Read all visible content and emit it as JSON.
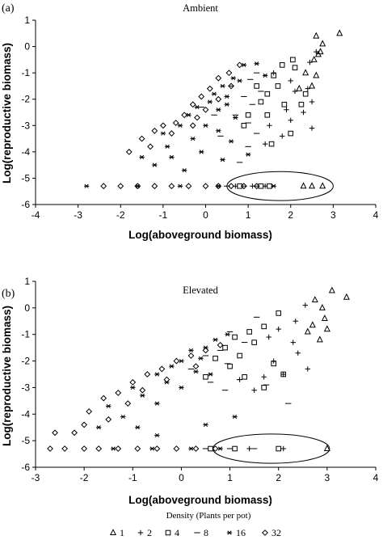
{
  "legend": {
    "title": "Density (Plants per pot)",
    "items": [
      {
        "label": "1",
        "marker": "triangle-icon"
      },
      {
        "label": "2",
        "marker": "plus-icon"
      },
      {
        "label": "4",
        "marker": "square-icon"
      },
      {
        "label": "8",
        "marker": "dash-icon"
      },
      {
        "label": "16",
        "marker": "asterisk-icon"
      },
      {
        "label": "32",
        "marker": "diamond-icon"
      }
    ]
  },
  "chart_data": [
    {
      "panel_label": "(a)",
      "type": "scatter",
      "title": "Ambient",
      "xlabel": "Log(aboveground biomass)",
      "ylabel": "Log(reproductive biomass)",
      "xlim": [
        -4,
        4
      ],
      "ylim": [
        -6,
        1
      ],
      "xticks": [
        "-4",
        "-3",
        "-2",
        "-1",
        "0",
        "1",
        "2",
        "3",
        "4"
      ],
      "yticks": [
        "1",
        "0",
        "-1",
        "-2",
        "-3",
        "-4",
        "-5",
        "-6"
      ],
      "ellipse": {
        "cx": 1.75,
        "cy": -5.3,
        "rx": 1.25,
        "ry": 0.55
      },
      "series": [
        {
          "name": "1",
          "marker": "triangle",
          "points": [
            [
              2.6,
              0.4
            ],
            [
              3.15,
              0.5
            ],
            [
              2.75,
              0.1
            ],
            [
              2.65,
              -0.3
            ],
            [
              2.55,
              -0.5
            ],
            [
              2.7,
              -0.2
            ],
            [
              2.35,
              -1.0
            ],
            [
              2.6,
              -1.1
            ],
            [
              2.5,
              -1.5
            ],
            [
              2.2,
              -1.6
            ],
            [
              2.3,
              -5.3
            ],
            [
              2.5,
              -5.3
            ],
            [
              2.75,
              -5.3
            ]
          ]
        },
        {
          "name": "2",
          "marker": "plus",
          "points": [
            [
              2.6,
              -0.2
            ],
            [
              2.45,
              -0.6
            ],
            [
              1.6,
              -1.0
            ],
            [
              2.0,
              -1.3
            ],
            [
              2.1,
              -1.7
            ],
            [
              2.4,
              -1.6
            ],
            [
              1.9,
              -2.4
            ],
            [
              2.5,
              -2.1
            ],
            [
              2.3,
              -2.5
            ],
            [
              2.0,
              -2.8
            ],
            [
              1.5,
              -3.0
            ],
            [
              1.8,
              -3.4
            ],
            [
              2.5,
              -3.1
            ],
            [
              1.4,
              -3.7
            ],
            [
              0.7,
              -5.3
            ],
            [
              1.1,
              -5.3
            ],
            [
              1.4,
              -5.3
            ]
          ]
        },
        {
          "name": "4",
          "marker": "square",
          "points": [
            [
              2.05,
              -0.5
            ],
            [
              2.1,
              -0.8
            ],
            [
              1.8,
              -0.7
            ],
            [
              1.6,
              -1.1
            ],
            [
              1.7,
              -1.5
            ],
            [
              1.2,
              -1.5
            ],
            [
              1.45,
              -1.8
            ],
            [
              2.35,
              -1.8
            ],
            [
              2.25,
              -2.2
            ],
            [
              1.85,
              -2.2
            ],
            [
              1.3,
              -2.1
            ],
            [
              1.0,
              -2.6
            ],
            [
              1.45,
              -2.6
            ],
            [
              0.9,
              -3.0
            ],
            [
              2.0,
              -3.3
            ],
            [
              1.55,
              -3.7
            ],
            [
              0.8,
              -5.3
            ],
            [
              1.3,
              -5.3
            ],
            [
              1.5,
              -5.3
            ]
          ]
        },
        {
          "name": "8",
          "marker": "dash",
          "points": [
            [
              1.2,
              -1.0
            ],
            [
              1.05,
              -1.25
            ],
            [
              1.3,
              -1.7
            ],
            [
              0.9,
              -1.9
            ],
            [
              0.6,
              -1.5
            ],
            [
              1.1,
              -2.2
            ],
            [
              0.7,
              -2.6
            ],
            [
              0.2,
              -2.6
            ],
            [
              -0.1,
              -2.3
            ],
            [
              1.0,
              -2.9
            ],
            [
              1.2,
              -3.3
            ],
            [
              0.35,
              -3.4
            ],
            [
              1.0,
              -3.8
            ],
            [
              0.8,
              -4.4
            ],
            [
              0.5,
              -5.3
            ],
            [
              0.9,
              -5.3
            ],
            [
              1.2,
              -5.3
            ]
          ]
        },
        {
          "name": "16",
          "marker": "asterisk",
          "points": [
            [
              1.2,
              -0.65
            ],
            [
              0.9,
              -0.7
            ],
            [
              1.4,
              -1.1
            ],
            [
              0.8,
              -1.3
            ],
            [
              0.65,
              -1.2
            ],
            [
              0.4,
              -1.5
            ],
            [
              0.2,
              -1.8
            ],
            [
              0.5,
              -1.9
            ],
            [
              0.1,
              -2.1
            ],
            [
              -0.2,
              -2.3
            ],
            [
              0.3,
              -2.4
            ],
            [
              0.5,
              -2.2
            ],
            [
              -0.4,
              -2.6
            ],
            [
              0.7,
              -2.7
            ],
            [
              0.0,
              -3.0
            ],
            [
              -0.6,
              -3.0
            ],
            [
              0.3,
              -3.2
            ],
            [
              -1.0,
              -3.3
            ],
            [
              -0.3,
              -3.5
            ],
            [
              0.6,
              -3.6
            ],
            [
              -0.9,
              -3.8
            ],
            [
              -0.1,
              -4.0
            ],
            [
              -1.5,
              -4.2
            ],
            [
              -0.8,
              -4.2
            ],
            [
              0.4,
              -4.3
            ],
            [
              1.0,
              -4.1
            ],
            [
              -1.2,
              -4.5
            ],
            [
              -0.5,
              -4.7
            ],
            [
              -2.8,
              -5.3
            ],
            [
              -1.6,
              -5.3
            ],
            [
              -0.6,
              -5.3
            ],
            [
              0.3,
              -5.3
            ],
            [
              1.6,
              -5.3
            ]
          ]
        },
        {
          "name": "32",
          "marker": "diamond",
          "points": [
            [
              0.8,
              -0.7
            ],
            [
              0.55,
              -1.0
            ],
            [
              0.3,
              -1.2
            ],
            [
              0.6,
              -1.5
            ],
            [
              0.1,
              -1.6
            ],
            [
              -0.1,
              -1.9
            ],
            [
              0.3,
              -2.0
            ],
            [
              -0.3,
              -2.2
            ],
            [
              0.0,
              -2.4
            ],
            [
              -0.2,
              -2.7
            ],
            [
              -0.5,
              -2.6
            ],
            [
              -0.7,
              -2.9
            ],
            [
              -0.3,
              -3.0
            ],
            [
              -1.0,
              -3.0
            ],
            [
              -0.8,
              -3.3
            ],
            [
              -1.2,
              -3.2
            ],
            [
              -1.5,
              -3.5
            ],
            [
              -1.3,
              -3.8
            ],
            [
              -1.8,
              -4.0
            ],
            [
              -2.4,
              -5.3
            ],
            [
              -2.0,
              -5.3
            ],
            [
              -1.6,
              -5.3
            ],
            [
              -1.2,
              -5.3
            ],
            [
              -0.8,
              -5.3
            ],
            [
              -0.4,
              -5.3
            ],
            [
              0.0,
              -5.3
            ],
            [
              0.3,
              -5.3
            ],
            [
              0.6,
              -5.3
            ],
            [
              0.9,
              -5.3
            ],
            [
              1.2,
              -5.3
            ]
          ]
        }
      ]
    },
    {
      "panel_label": "(b)",
      "type": "scatter",
      "title": "Elevated",
      "xlabel": "Log(aboveground biomass)",
      "ylabel": "Log(reproductive biomass)",
      "xlim": [
        -3,
        4
      ],
      "ylim": [
        -6,
        1
      ],
      "xticks": [
        "-3",
        "-2",
        "-1",
        "0",
        "1",
        "2",
        "3",
        "4"
      ],
      "yticks": [
        "1",
        "0",
        "-1",
        "-2",
        "-3",
        "-4",
        "-5",
        "-6"
      ],
      "ellipse": {
        "cx": 1.85,
        "cy": -5.3,
        "rx": 1.2,
        "ry": 0.55
      },
      "series": [
        {
          "name": "1",
          "marker": "triangle",
          "points": [
            [
              2.75,
              0.3
            ],
            [
              3.1,
              0.65
            ],
            [
              3.4,
              0.4
            ],
            [
              2.9,
              0.0
            ],
            [
              2.95,
              -0.4
            ],
            [
              2.7,
              -0.65
            ],
            [
              3.0,
              -0.8
            ],
            [
              2.85,
              -1.2
            ],
            [
              2.6,
              -0.9
            ],
            [
              3.0,
              -5.3
            ]
          ]
        },
        {
          "name": "2",
          "marker": "plus",
          "points": [
            [
              2.55,
              0.1
            ],
            [
              2.35,
              -0.5
            ],
            [
              2.0,
              -0.8
            ],
            [
              1.8,
              -1.1
            ],
            [
              2.3,
              -1.3
            ],
            [
              2.4,
              -1.7
            ],
            [
              1.9,
              -2.0
            ],
            [
              2.1,
              -2.5
            ],
            [
              2.6,
              -2.3
            ],
            [
              1.7,
              -2.6
            ],
            [
              1.2,
              -2.7
            ],
            [
              1.5,
              -3.1
            ],
            [
              2.1,
              -5.3
            ],
            [
              1.4,
              -5.3
            ]
          ]
        },
        {
          "name": "4",
          "marker": "square",
          "points": [
            [
              2.0,
              -0.2
            ],
            [
              1.7,
              -0.7
            ],
            [
              1.4,
              -0.9
            ],
            [
              1.1,
              -1.1
            ],
            [
              1.5,
              -1.3
            ],
            [
              0.9,
              -1.5
            ],
            [
              1.2,
              -1.8
            ],
            [
              0.7,
              -1.9
            ],
            [
              1.0,
              -2.2
            ],
            [
              1.9,
              -2.1
            ],
            [
              2.1,
              -2.5
            ],
            [
              0.5,
              -2.6
            ],
            [
              1.3,
              -2.6
            ],
            [
              1.7,
              -3.0
            ],
            [
              2.0,
              -5.3
            ],
            [
              1.1,
              -5.3
            ],
            [
              0.6,
              -5.3
            ]
          ]
        },
        {
          "name": "8",
          "marker": "dash",
          "points": [
            [
              1.55,
              -0.35
            ],
            [
              1.0,
              -0.9
            ],
            [
              1.3,
              -1.3
            ],
            [
              0.8,
              -1.6
            ],
            [
              0.5,
              -1.8
            ],
            [
              0.95,
              -2.1
            ],
            [
              0.2,
              -2.3
            ],
            [
              0.6,
              -2.8
            ],
            [
              1.2,
              -2.7
            ],
            [
              0.9,
              -3.1
            ],
            [
              1.75,
              -2.9
            ],
            [
              2.2,
              -3.6
            ],
            [
              1.5,
              -5.3
            ],
            [
              1.0,
              -5.3
            ],
            [
              0.5,
              -5.3
            ]
          ]
        },
        {
          "name": "16",
          "marker": "asterisk",
          "points": [
            [
              0.95,
              -1.0
            ],
            [
              0.7,
              -1.2
            ],
            [
              0.5,
              -1.5
            ],
            [
              0.2,
              -1.6
            ],
            [
              0.4,
              -1.9
            ],
            [
              0.0,
              -2.0
            ],
            [
              -0.2,
              -2.2
            ],
            [
              0.3,
              -2.4
            ],
            [
              -0.5,
              -2.5
            ],
            [
              0.6,
              -2.5
            ],
            [
              -0.3,
              -2.8
            ],
            [
              -1.0,
              -3.0
            ],
            [
              0.0,
              -3.0
            ],
            [
              -0.8,
              -3.3
            ],
            [
              -0.5,
              -3.6
            ],
            [
              -1.5,
              -3.7
            ],
            [
              -1.2,
              -4.1
            ],
            [
              -0.9,
              -4.5
            ],
            [
              -0.5,
              -4.8
            ],
            [
              0.5,
              -4.4
            ],
            [
              1.1,
              -4.1
            ],
            [
              -1.7,
              -4.5
            ],
            [
              -1.4,
              -5.3
            ],
            [
              -0.6,
              -5.3
            ],
            [
              0.2,
              -5.3
            ],
            [
              0.8,
              -5.3
            ]
          ]
        },
        {
          "name": "32",
          "marker": "diamond",
          "points": [
            [
              0.8,
              -1.4
            ],
            [
              0.5,
              -1.6
            ],
            [
              0.2,
              -1.8
            ],
            [
              -0.1,
              -2.0
            ],
            [
              0.3,
              -2.2
            ],
            [
              -0.4,
              -2.3
            ],
            [
              -0.7,
              -2.5
            ],
            [
              -0.3,
              -2.7
            ],
            [
              -1.0,
              -2.8
            ],
            [
              -0.8,
              -3.1
            ],
            [
              -1.3,
              -3.2
            ],
            [
              -1.6,
              -3.4
            ],
            [
              -1.1,
              -3.6
            ],
            [
              -1.9,
              -3.9
            ],
            [
              -1.5,
              -4.2
            ],
            [
              -2.0,
              -4.4
            ],
            [
              -2.2,
              -4.7
            ],
            [
              -2.6,
              -4.7
            ],
            [
              -2.7,
              -5.3
            ],
            [
              -2.4,
              -5.3
            ],
            [
              -2.0,
              -5.3
            ],
            [
              -1.7,
              -5.3
            ],
            [
              -1.3,
              -5.3
            ],
            [
              -0.9,
              -5.3
            ],
            [
              -0.5,
              -5.3
            ],
            [
              -0.1,
              -5.3
            ],
            [
              0.3,
              -5.3
            ],
            [
              0.7,
              -5.3
            ]
          ]
        }
      ]
    }
  ]
}
